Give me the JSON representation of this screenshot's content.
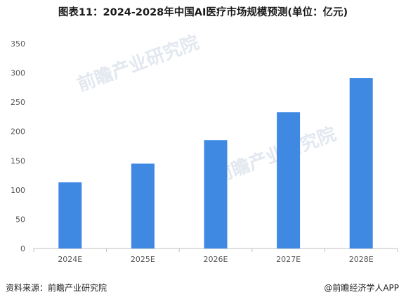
{
  "title": "图表11：2024-2028年中国AI医疗市场规模预测(单位：亿元)",
  "source": "资料来源：前瞻产业研究院",
  "credit": "@前瞻经济学人APP",
  "watermark_text": "前瞻产业研究院",
  "colors": {
    "bar": "#3f89e3",
    "axis": "#bfbfbf",
    "text": "#555555",
    "watermark": "#dde4ee"
  },
  "chart_data": {
    "type": "bar",
    "title": "图表11：2024-2028年中国AI医疗市场规模预测(单位：亿元)",
    "categories": [
      "2024E",
      "2025E",
      "2026E",
      "2027E",
      "2028E"
    ],
    "values": [
      113,
      145,
      185,
      233,
      291
    ],
    "yticks": [
      0,
      50,
      100,
      150,
      200,
      250,
      300,
      350
    ],
    "ylim": [
      0,
      350
    ],
    "xlabel": "",
    "ylabel": "",
    "grid": false,
    "legend": "none"
  }
}
